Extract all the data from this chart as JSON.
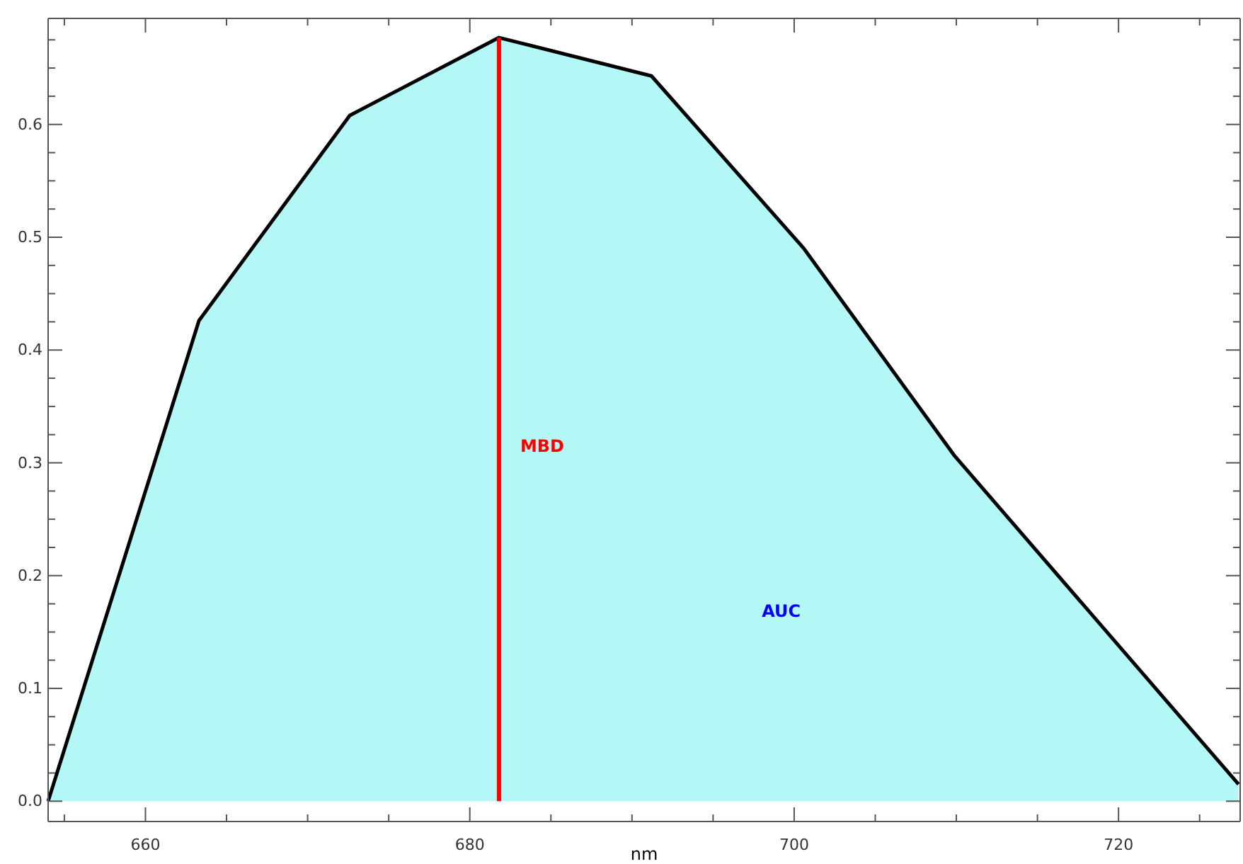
{
  "chart_data": {
    "type": "area",
    "xlabel": "nm",
    "x": [
      654,
      663.3,
      672.6,
      681.8,
      691.2,
      700.6,
      709.9,
      727.4
    ],
    "series": [
      {
        "color": "#b3f7f7",
        "values": [
          0,
          0.426,
          0.608,
          0.677,
          0.643,
          0.49,
          0.306,
          0.015
        ]
      }
    ],
    "xlim": [
      654,
      727.5
    ],
    "ylim": [
      -0.018,
      0.694
    ],
    "xticks": [
      {
        "value": 655,
        "label": null
      },
      660,
      {
        "value": 665,
        "label": null
      },
      {
        "value": 670,
        "label": null
      },
      {
        "value": 675,
        "label": null
      },
      680,
      {
        "value": 685,
        "label": null
      },
      {
        "value": 690,
        "label": null
      },
      {
        "value": 695,
        "label": null
      },
      700,
      {
        "value": 705,
        "label": null
      },
      {
        "value": 710,
        "label": null
      },
      {
        "value": 715,
        "label": null
      },
      720,
      {
        "value": 725,
        "label": null
      }
    ],
    "yticks": [
      {
        "value": 0,
        "label": "0.0"
      },
      {
        "value": 0.025,
        "label": null
      },
      {
        "value": 0.05,
        "label": null
      },
      {
        "value": 0.075,
        "label": null
      },
      0.1,
      {
        "value": 0.125,
        "label": null
      },
      {
        "value": 0.15,
        "label": null
      },
      {
        "value": 0.175,
        "label": null
      },
      0.2,
      {
        "value": 0.225,
        "label": null
      },
      {
        "value": 0.25,
        "label": null
      },
      {
        "value": 0.275,
        "label": null
      },
      0.3,
      {
        "value": 0.325,
        "label": null
      },
      {
        "value": 0.35,
        "label": null
      },
      {
        "value": 0.375,
        "label": null
      },
      0.4,
      {
        "value": 0.425,
        "label": null
      },
      {
        "value": 0.45,
        "label": null
      },
      {
        "value": 0.475,
        "label": null
      },
      0.5,
      {
        "value": 0.525,
        "label": null
      },
      {
        "value": 0.55,
        "label": null
      },
      {
        "value": 0.575,
        "label": null
      },
      0.6,
      {
        "value": 0.625,
        "label": null
      },
      {
        "value": 0.65,
        "label": null
      },
      {
        "value": 0.675,
        "label": null
      }
    ],
    "ref_lines": [
      {
        "axis": "x",
        "value": 681.8,
        "label": "MBD",
        "color": "#ff0000"
      }
    ],
    "annotations": [
      "AUC"
    ],
    "grid": false
  }
}
